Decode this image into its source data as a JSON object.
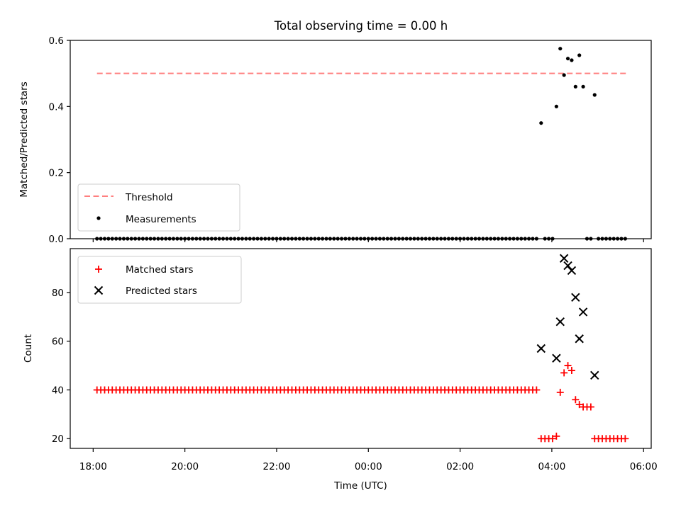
{
  "chart_data": [
    {
      "type": "scatter",
      "panel": "top",
      "title": "Total observing time = 0.00 h",
      "xlabel": "",
      "ylabel": "Matched/Predicted stars",
      "xlim": [
        "17:30",
        "06:10"
      ],
      "ylim": [
        0.0,
        0.6
      ],
      "yticks": [
        "0.0",
        "0.2",
        "0.4",
        "0.6"
      ],
      "grid": false,
      "legend": {
        "placement": "lower-left",
        "entries": [
          "Threshold",
          "Measurements"
        ]
      },
      "threshold": {
        "name": "Threshold",
        "y": 0.5,
        "x_start": "18:05",
        "x_end": "05:40",
        "style": "dashed",
        "color": "#ff7f7f"
      },
      "series": [
        {
          "name": "Measurements",
          "marker": "dot",
          "color": "#000000",
          "points": [
            {
              "x": "03:46",
              "y": 0.35
            },
            {
              "x": "04:06",
              "y": 0.4
            },
            {
              "x": "04:11",
              "y": 0.575
            },
            {
              "x": "04:16",
              "y": 0.495
            },
            {
              "x": "04:21",
              "y": 0.545
            },
            {
              "x": "04:26",
              "y": 0.54
            },
            {
              "x": "04:31",
              "y": 0.46
            },
            {
              "x": "04:36",
              "y": 0.555
            },
            {
              "x": "04:41",
              "y": 0.46
            },
            {
              "x": "04:56",
              "y": 0.435
            }
          ],
          "zero_runs": [
            {
              "start": "18:05",
              "end": "03:40",
              "step_min": 5
            },
            {
              "start": "03:51",
              "end": "04:01",
              "step_min": 5
            },
            {
              "start": "04:46",
              "end": "04:51",
              "step_min": 5
            },
            {
              "start": "05:01",
              "end": "05:36",
              "step_min": 5
            }
          ],
          "zero_value": 0.0
        }
      ]
    },
    {
      "type": "scatter",
      "panel": "bottom",
      "xlabel": "Time (UTC)",
      "ylabel": "Count",
      "xlim": [
        "17:30",
        "06:10"
      ],
      "ylim": [
        16,
        98
      ],
      "xticks": [
        "18:00",
        "20:00",
        "22:00",
        "00:00",
        "02:00",
        "04:00",
        "06:00"
      ],
      "yticks": [
        "20",
        "40",
        "60",
        "80"
      ],
      "grid": false,
      "legend": {
        "placement": "upper-left",
        "entries": [
          "Matched stars",
          "Predicted stars"
        ]
      },
      "series": [
        {
          "name": "Matched stars",
          "marker": "plus",
          "color": "#ff0000",
          "points": [
            {
              "x": "03:46",
              "y": 20
            },
            {
              "x": "03:51",
              "y": 20
            },
            {
              "x": "03:56",
              "y": 20
            },
            {
              "x": "04:01",
              "y": 20
            },
            {
              "x": "04:06",
              "y": 21
            },
            {
              "x": "04:11",
              "y": 39
            },
            {
              "x": "04:16",
              "y": 47
            },
            {
              "x": "04:21",
              "y": 50
            },
            {
              "x": "04:26",
              "y": 48
            },
            {
              "x": "04:31",
              "y": 36
            },
            {
              "x": "04:36",
              "y": 34
            },
            {
              "x": "04:41",
              "y": 33
            },
            {
              "x": "04:46",
              "y": 33
            },
            {
              "x": "04:51",
              "y": 33
            }
          ],
          "runs": [
            {
              "start": "18:05",
              "end": "03:40",
              "step_min": 5,
              "y": 40
            },
            {
              "start": "04:56",
              "end": "05:36",
              "step_min": 5,
              "y": 20
            }
          ]
        },
        {
          "name": "Predicted stars",
          "marker": "x",
          "color": "#000000",
          "points": [
            {
              "x": "03:46",
              "y": 57
            },
            {
              "x": "04:06",
              "y": 53
            },
            {
              "x": "04:11",
              "y": 68
            },
            {
              "x": "04:16",
              "y": 94
            },
            {
              "x": "04:21",
              "y": 91
            },
            {
              "x": "04:26",
              "y": 89
            },
            {
              "x": "04:31",
              "y": 78
            },
            {
              "x": "04:36",
              "y": 61
            },
            {
              "x": "04:41",
              "y": 72
            },
            {
              "x": "04:56",
              "y": 46
            }
          ]
        }
      ]
    }
  ]
}
